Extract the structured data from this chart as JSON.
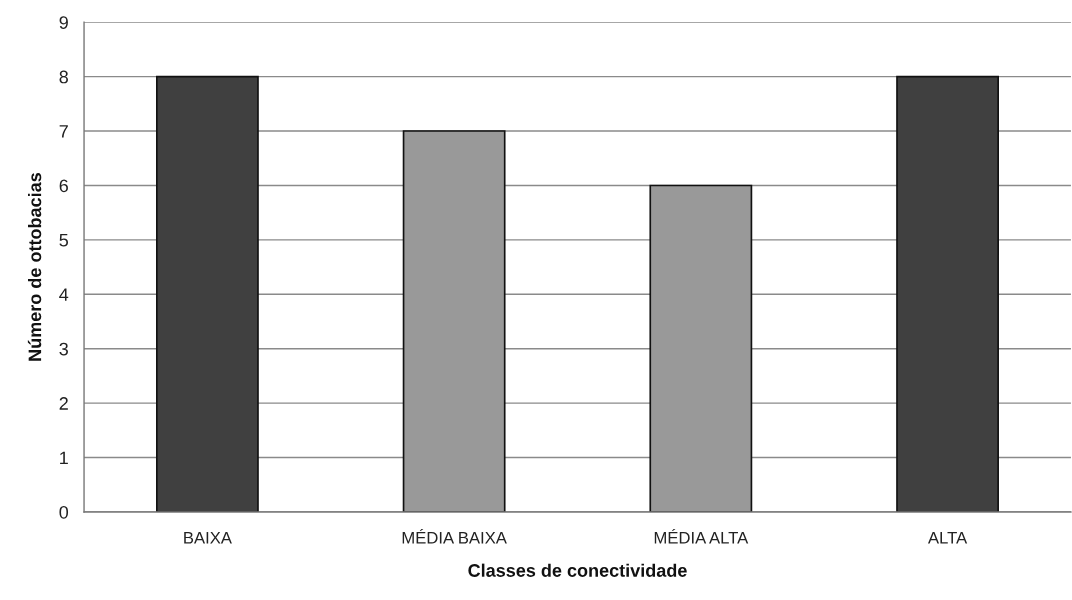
{
  "chart_data": {
    "type": "bar",
    "xlabel": "Classes de conectividade",
    "ylabel": "Número de ottobacias",
    "categories": [
      "BAIXA",
      "MÉDIA BAIXA",
      "MÉDIA ALTA",
      "ALTA"
    ],
    "values": [
      8,
      7,
      6,
      8
    ],
    "colors": [
      "#404040",
      "#999999",
      "#999999",
      "#404040"
    ],
    "ylim": [
      0,
      9
    ],
    "yticks": [
      0,
      1,
      2,
      3,
      4,
      5,
      6,
      7,
      8,
      9
    ],
    "grid": "y"
  }
}
